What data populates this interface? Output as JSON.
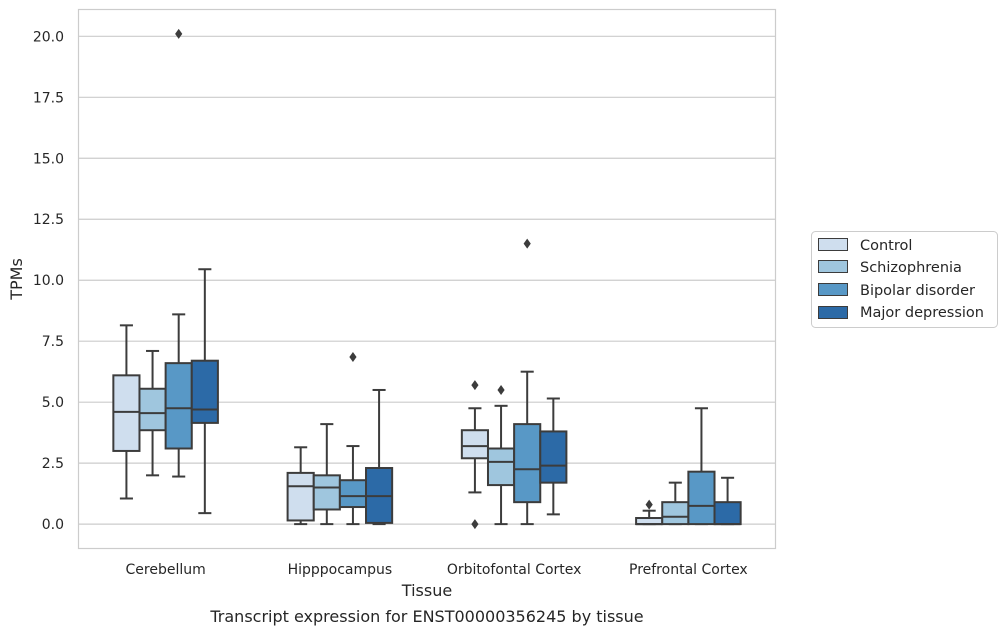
{
  "chart_data": {
    "type": "boxplot",
    "caption": "Transcript expression for ENST00000356245 by tissue",
    "xlabel": "Tissue",
    "ylabel": "TPMs",
    "ylim": [
      -1.0,
      21.1
    ],
    "yticks": [
      0.0,
      2.5,
      5.0,
      7.5,
      10.0,
      12.5,
      15.0,
      17.5,
      20.0
    ],
    "ytick_labels": [
      "0.0",
      "2.5",
      "5.0",
      "7.5",
      "10.0",
      "12.5",
      "15.0",
      "17.5",
      "20.0"
    ],
    "grid": "horizontal",
    "legend_position": "right, outside",
    "categories": [
      "Cerebellum",
      "Hipppocampus",
      "Orbitofontal Cortex",
      "Prefrontal Cortex"
    ],
    "series": [
      {
        "name": "Control",
        "color": "#cfdeee",
        "boxes": [
          {
            "whisker_low": 1.05,
            "q1": 3.0,
            "median": 4.6,
            "q3": 6.1,
            "whisker_high": 8.15,
            "outliers": []
          },
          {
            "whisker_low": 0.0,
            "q1": 0.15,
            "median": 1.55,
            "q3": 2.1,
            "whisker_high": 3.15,
            "outliers": []
          },
          {
            "whisker_low": 1.3,
            "q1": 2.7,
            "median": 3.2,
            "q3": 3.85,
            "whisker_high": 4.75,
            "outliers": [
              5.7,
              0.0
            ]
          },
          {
            "whisker_low": 0.0,
            "q1": 0.0,
            "median": 0.0,
            "q3": 0.25,
            "whisker_high": 0.55,
            "outliers": [
              0.8
            ]
          }
        ]
      },
      {
        "name": "Schizophrenia",
        "color": "#9fc6de",
        "boxes": [
          {
            "whisker_low": 2.0,
            "q1": 3.85,
            "median": 4.55,
            "q3": 5.55,
            "whisker_high": 7.1,
            "outliers": []
          },
          {
            "whisker_low": 0.0,
            "q1": 0.6,
            "median": 1.5,
            "q3": 2.0,
            "whisker_high": 4.1,
            "outliers": []
          },
          {
            "whisker_low": 0.0,
            "q1": 1.6,
            "median": 2.55,
            "q3": 3.1,
            "whisker_high": 4.85,
            "outliers": [
              5.5
            ]
          },
          {
            "whisker_low": 0.0,
            "q1": 0.0,
            "median": 0.3,
            "q3": 0.9,
            "whisker_high": 1.7,
            "outliers": []
          }
        ]
      },
      {
        "name": "Bipolar disorder",
        "color": "#5898c6",
        "boxes": [
          {
            "whisker_low": 1.95,
            "q1": 3.1,
            "median": 4.75,
            "q3": 6.6,
            "whisker_high": 8.6,
            "outliers": [
              20.1
            ]
          },
          {
            "whisker_low": 0.0,
            "q1": 0.7,
            "median": 1.15,
            "q3": 1.8,
            "whisker_high": 3.2,
            "outliers": [
              6.85
            ]
          },
          {
            "whisker_low": 0.0,
            "q1": 0.9,
            "median": 2.25,
            "q3": 4.1,
            "whisker_high": 6.25,
            "outliers": [
              11.5
            ]
          },
          {
            "whisker_low": 0.0,
            "q1": 0.0,
            "median": 0.75,
            "q3": 2.15,
            "whisker_high": 4.75,
            "outliers": []
          }
        ]
      },
      {
        "name": "Major depression",
        "color": "#2c6aa7",
        "boxes": [
          {
            "whisker_low": 0.45,
            "q1": 4.15,
            "median": 4.7,
            "q3": 6.7,
            "whisker_high": 10.45,
            "outliers": []
          },
          {
            "whisker_low": 0.0,
            "q1": 0.05,
            "median": 1.15,
            "q3": 2.3,
            "whisker_high": 5.5,
            "outliers": []
          },
          {
            "whisker_low": 0.4,
            "q1": 1.7,
            "median": 2.4,
            "q3": 3.8,
            "whisker_high": 5.15,
            "outliers": []
          },
          {
            "whisker_low": 0.0,
            "q1": 0.0,
            "median": 0.0,
            "q3": 0.9,
            "whisker_high": 1.9,
            "outliers": []
          }
        ]
      }
    ]
  }
}
